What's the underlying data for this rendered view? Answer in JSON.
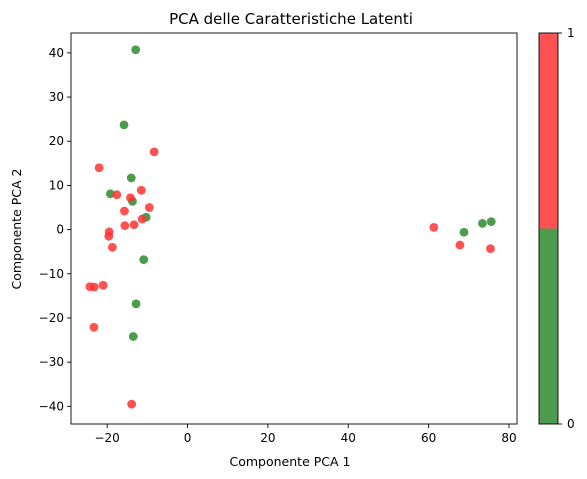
{
  "chart_data": {
    "type": "scatter",
    "title": "PCA delle Caratteristiche Latenti",
    "xlabel": "Componente PCA 1",
    "ylabel": "Componente PCA 2",
    "xlim": [
      -29,
      82
    ],
    "ylim": [
      -44,
      44.5
    ],
    "xticks": [
      -20,
      0,
      20,
      40,
      60,
      80
    ],
    "yticks": [
      -40,
      -30,
      -20,
      -10,
      0,
      10,
      20,
      30,
      40
    ],
    "grid": false,
    "colorbar": {
      "ticks": [
        0,
        1
      ],
      "colors": {
        "0": "#2e8b2e",
        "1": "#ff3333"
      }
    },
    "series": [
      {
        "label_value": 0,
        "color": "#2e8b2e",
        "points": [
          [
            -12.9,
            40.7
          ],
          [
            -15.8,
            23.7
          ],
          [
            -14.0,
            11.7
          ],
          [
            -19.2,
            8.1
          ],
          [
            -13.7,
            6.4
          ],
          [
            -10.3,
            2.8
          ],
          [
            -10.9,
            -6.8
          ],
          [
            -12.8,
            -16.8
          ],
          [
            -13.5,
            -24.2
          ],
          [
            68.8,
            -0.6
          ],
          [
            73.4,
            1.4
          ],
          [
            75.6,
            1.8
          ]
        ]
      },
      {
        "label_value": 1,
        "color": "#ff3333",
        "points": [
          [
            -8.3,
            17.6
          ],
          [
            -22.0,
            14.0
          ],
          [
            -17.6,
            7.9
          ],
          [
            -11.5,
            8.9
          ],
          [
            -14.2,
            7.2
          ],
          [
            -15.7,
            4.2
          ],
          [
            -9.5,
            5.0
          ],
          [
            -11.3,
            2.4
          ],
          [
            -15.6,
            0.9
          ],
          [
            -13.3,
            1.1
          ],
          [
            -19.5,
            -0.5
          ],
          [
            -19.6,
            -1.5
          ],
          [
            -18.7,
            -4.0
          ],
          [
            -24.3,
            -12.9
          ],
          [
            -23.2,
            -13.0
          ],
          [
            -21.0,
            -12.6
          ],
          [
            -23.3,
            -22.1
          ],
          [
            -13.9,
            -39.5
          ],
          [
            61.3,
            0.5
          ],
          [
            67.8,
            -3.5
          ],
          [
            75.4,
            -4.3
          ]
        ]
      }
    ]
  }
}
